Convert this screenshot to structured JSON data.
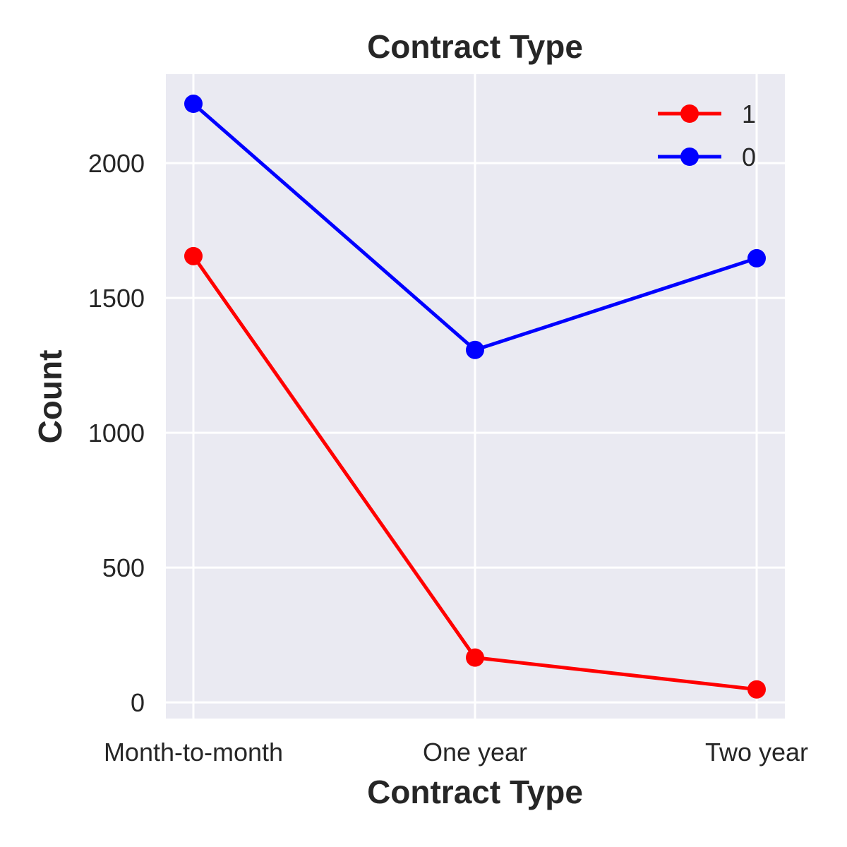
{
  "chart_data": {
    "type": "line",
    "title": "Contract Type",
    "xlabel": "Contract Type",
    "ylabel": "Count",
    "categories": [
      "Month-to-month",
      "One year",
      "Two year"
    ],
    "series": [
      {
        "name": "1",
        "color": "#ff0000",
        "values": [
          1655,
          166,
          48
        ]
      },
      {
        "name": "0",
        "color": "#0000ff",
        "values": [
          2220,
          1307,
          1647
        ]
      }
    ],
    "ylim": [
      -60,
      2330
    ],
    "yticks": [
      0,
      500,
      1000,
      1500,
      2000
    ],
    "grid": true,
    "legend": "top-right",
    "background_color": "#eaeaf2",
    "grid_color": "#ffffff"
  }
}
